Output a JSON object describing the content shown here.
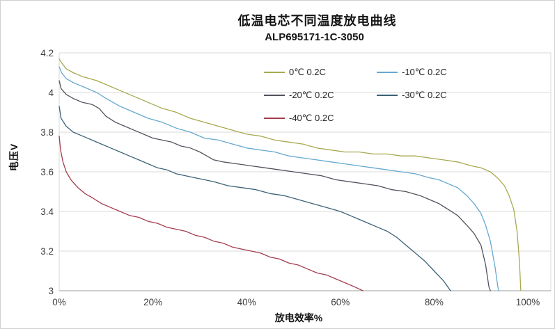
{
  "header": {
    "title": "低温电芯不同温度放电曲线",
    "subtitle": "ALP695171-1C-3050"
  },
  "chart_data": {
    "type": "line",
    "title": "低温电芯不同温度放电曲线",
    "subtitle": "ALP695171-1C-3050",
    "xlabel": "放电效率%",
    "ylabel": "电压V",
    "xlim": [
      0,
      105
    ],
    "ylim": [
      3.0,
      4.2
    ],
    "grid": "horizontal",
    "legend_position": "top-inside, two columns, no border",
    "x_ticks": [
      "0%",
      "20%",
      "40%",
      "60%",
      "80%",
      "100%"
    ],
    "x_tick_values": [
      0,
      20,
      40,
      60,
      80,
      100
    ],
    "y_ticks": [
      "4.2",
      "4",
      "3.8",
      "3.6",
      "3.4",
      "3.2",
      "3"
    ],
    "y_tick_values": [
      4.2,
      4.0,
      3.8,
      3.6,
      3.4,
      3.2,
      3.0
    ],
    "series": [
      {
        "name": "0℃ 0.2C",
        "color": "#a6a94f",
        "points": [
          [
            0,
            4.17
          ],
          [
            0.5,
            4.15
          ],
          [
            1.5,
            4.12
          ],
          [
            3,
            4.1
          ],
          [
            5,
            4.08
          ],
          [
            8,
            4.06
          ],
          [
            10,
            4.04
          ],
          [
            13,
            4.01
          ],
          [
            16,
            3.98
          ],
          [
            19,
            3.95
          ],
          [
            22,
            3.92
          ],
          [
            25,
            3.9
          ],
          [
            28,
            3.87
          ],
          [
            31,
            3.85
          ],
          [
            34,
            3.83
          ],
          [
            37,
            3.81
          ],
          [
            40,
            3.79
          ],
          [
            43,
            3.78
          ],
          [
            46,
            3.76
          ],
          [
            49,
            3.75
          ],
          [
            52,
            3.74
          ],
          [
            55,
            3.72
          ],
          [
            58,
            3.71
          ],
          [
            61,
            3.7
          ],
          [
            64,
            3.7
          ],
          [
            67,
            3.69
          ],
          [
            70,
            3.69
          ],
          [
            73,
            3.68
          ],
          [
            76,
            3.68
          ],
          [
            79,
            3.67
          ],
          [
            82,
            3.66
          ],
          [
            85,
            3.65
          ],
          [
            88,
            3.63
          ],
          [
            90,
            3.62
          ],
          [
            92,
            3.6
          ],
          [
            93.5,
            3.57
          ],
          [
            95,
            3.53
          ],
          [
            96,
            3.48
          ],
          [
            97,
            3.41
          ],
          [
            97.7,
            3.3
          ],
          [
            98.2,
            3.15
          ],
          [
            98.5,
            3.0
          ]
        ]
      },
      {
        "name": "-10℃ 0.2C",
        "color": "#64a9cf",
        "points": [
          [
            0,
            4.13
          ],
          [
            0.5,
            4.1
          ],
          [
            1.5,
            4.07
          ],
          [
            3,
            4.05
          ],
          [
            5,
            4.03
          ],
          [
            8,
            4.0
          ],
          [
            10,
            3.97
          ],
          [
            13,
            3.93
          ],
          [
            16,
            3.9
          ],
          [
            19,
            3.87
          ],
          [
            22,
            3.85
          ],
          [
            25,
            3.82
          ],
          [
            28,
            3.8
          ],
          [
            31,
            3.77
          ],
          [
            34,
            3.76
          ],
          [
            37,
            3.74
          ],
          [
            40,
            3.72
          ],
          [
            43,
            3.71
          ],
          [
            46,
            3.7
          ],
          [
            49,
            3.68
          ],
          [
            52,
            3.67
          ],
          [
            55,
            3.66
          ],
          [
            58,
            3.65
          ],
          [
            61,
            3.64
          ],
          [
            64,
            3.63
          ],
          [
            67,
            3.62
          ],
          [
            70,
            3.61
          ],
          [
            73,
            3.6
          ],
          [
            76,
            3.59
          ],
          [
            79,
            3.57
          ],
          [
            81,
            3.56
          ],
          [
            83,
            3.54
          ],
          [
            85,
            3.52
          ],
          [
            87,
            3.48
          ],
          [
            88.5,
            3.44
          ],
          [
            90,
            3.39
          ],
          [
            91,
            3.33
          ],
          [
            92,
            3.25
          ],
          [
            93,
            3.12
          ],
          [
            93.6,
            3.02
          ],
          [
            93.8,
            3.0
          ]
        ]
      },
      {
        "name": "-20℃ 0.2C",
        "color": "#52525e",
        "points": [
          [
            0,
            4.06
          ],
          [
            0.4,
            4.02
          ],
          [
            1.5,
            3.99
          ],
          [
            3,
            3.97
          ],
          [
            5,
            3.95
          ],
          [
            7,
            3.94
          ],
          [
            8.5,
            3.92
          ],
          [
            10,
            3.88
          ],
          [
            12,
            3.85
          ],
          [
            14,
            3.83
          ],
          [
            16,
            3.81
          ],
          [
            18,
            3.79
          ],
          [
            20,
            3.77
          ],
          [
            22,
            3.76
          ],
          [
            24,
            3.75
          ],
          [
            26,
            3.73
          ],
          [
            28,
            3.72
          ],
          [
            30,
            3.7
          ],
          [
            31.5,
            3.68
          ],
          [
            33,
            3.66
          ],
          [
            35,
            3.65
          ],
          [
            38,
            3.64
          ],
          [
            41,
            3.63
          ],
          [
            44,
            3.62
          ],
          [
            47,
            3.61
          ],
          [
            50,
            3.6
          ],
          [
            53,
            3.59
          ],
          [
            56,
            3.58
          ],
          [
            59,
            3.56
          ],
          [
            62,
            3.55
          ],
          [
            65,
            3.54
          ],
          [
            68,
            3.53
          ],
          [
            71,
            3.51
          ],
          [
            74,
            3.5
          ],
          [
            77,
            3.48
          ],
          [
            79,
            3.46
          ],
          [
            81,
            3.44
          ],
          [
            83,
            3.41
          ],
          [
            85,
            3.38
          ],
          [
            87,
            3.33
          ],
          [
            88.5,
            3.29
          ],
          [
            90,
            3.23
          ],
          [
            91,
            3.13
          ],
          [
            91.7,
            3.02
          ],
          [
            92,
            3.0
          ]
        ]
      },
      {
        "name": "-30℃ 0.2C",
        "color": "#3b6278",
        "points": [
          [
            0,
            3.93
          ],
          [
            0.4,
            3.87
          ],
          [
            1.5,
            3.83
          ],
          [
            3,
            3.8
          ],
          [
            5,
            3.78
          ],
          [
            7,
            3.76
          ],
          [
            9,
            3.74
          ],
          [
            11,
            3.72
          ],
          [
            13,
            3.7
          ],
          [
            15,
            3.68
          ],
          [
            17,
            3.66
          ],
          [
            19,
            3.64
          ],
          [
            21,
            3.62
          ],
          [
            23,
            3.61
          ],
          [
            25,
            3.59
          ],
          [
            27,
            3.58
          ],
          [
            29,
            3.57
          ],
          [
            31,
            3.56
          ],
          [
            33,
            3.55
          ],
          [
            36,
            3.53
          ],
          [
            39,
            3.52
          ],
          [
            42,
            3.51
          ],
          [
            45,
            3.49
          ],
          [
            48,
            3.48
          ],
          [
            51,
            3.46
          ],
          [
            54,
            3.44
          ],
          [
            57,
            3.42
          ],
          [
            60,
            3.4
          ],
          [
            62,
            3.38
          ],
          [
            64,
            3.36
          ],
          [
            66,
            3.34
          ],
          [
            68,
            3.32
          ],
          [
            70,
            3.3
          ],
          [
            72,
            3.27
          ],
          [
            74,
            3.23
          ],
          [
            76,
            3.19
          ],
          [
            78,
            3.15
          ],
          [
            80,
            3.1
          ],
          [
            82,
            3.05
          ],
          [
            83.5,
            3.0
          ]
        ]
      },
      {
        "name": "-40℃ 0.2C",
        "color": "#a23c4e",
        "points": [
          [
            0,
            3.78
          ],
          [
            0.3,
            3.71
          ],
          [
            0.8,
            3.65
          ],
          [
            1.5,
            3.6
          ],
          [
            2.5,
            3.56
          ],
          [
            4,
            3.52
          ],
          [
            5.5,
            3.49
          ],
          [
            7,
            3.47
          ],
          [
            9,
            3.44
          ],
          [
            11,
            3.42
          ],
          [
            13,
            3.4
          ],
          [
            15,
            3.38
          ],
          [
            17,
            3.37
          ],
          [
            19,
            3.35
          ],
          [
            21,
            3.34
          ],
          [
            23,
            3.32
          ],
          [
            25,
            3.31
          ],
          [
            27,
            3.3
          ],
          [
            29,
            3.28
          ],
          [
            31,
            3.27
          ],
          [
            33,
            3.25
          ],
          [
            35,
            3.24
          ],
          [
            37,
            3.22
          ],
          [
            39,
            3.21
          ],
          [
            41,
            3.2
          ],
          [
            43,
            3.19
          ],
          [
            45,
            3.17
          ],
          [
            47,
            3.16
          ],
          [
            49,
            3.14
          ],
          [
            51,
            3.13
          ],
          [
            53,
            3.11
          ],
          [
            55,
            3.09
          ],
          [
            57,
            3.08
          ],
          [
            59,
            3.06
          ],
          [
            61,
            3.04
          ],
          [
            63,
            3.02
          ],
          [
            64.8,
            3.0
          ]
        ]
      }
    ],
    "colors": {
      "gridline": "#d9d9d9",
      "axis_line": "#9d9d9d",
      "tick_text": "#3f3f3f",
      "title_text": "#141414"
    }
  }
}
